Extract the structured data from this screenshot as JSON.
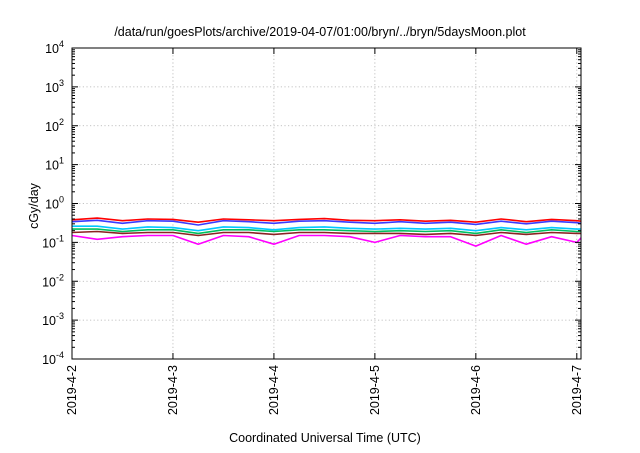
{
  "chart_data": {
    "type": "line",
    "title": "/data/run/goesPlots/archive/2019-04-07/01:00/bryn/../bryn/5daysMoon.plot",
    "xlabel": "Coordinated Universal Time (UTC)",
    "ylabel": "cGy/day",
    "y_scale": "log",
    "ylim": [
      0.0001,
      10000
    ],
    "y_ticks": [
      {
        "value": 10000,
        "base": "10",
        "exp": "4"
      },
      {
        "value": 1000,
        "base": "10",
        "exp": "3"
      },
      {
        "value": 100,
        "base": "10",
        "exp": "2"
      },
      {
        "value": 10,
        "base": "10",
        "exp": "1"
      },
      {
        "value": 1,
        "base": "10",
        "exp": "0"
      },
      {
        "value": 0.1,
        "base": "10",
        "exp": "-1"
      },
      {
        "value": 0.01,
        "base": "10",
        "exp": "-2"
      },
      {
        "value": 0.001,
        "base": "10",
        "exp": "-3"
      },
      {
        "value": 0.0001,
        "base": "10",
        "exp": "-4"
      }
    ],
    "xlim": [
      "2019-04-02",
      "2019-04-07 01:00"
    ],
    "x_ticks": [
      {
        "value": "2019-04-02",
        "label": "2019-4-2"
      },
      {
        "value": "2019-04-03",
        "label": "2019-4-3"
      },
      {
        "value": "2019-04-04",
        "label": "2019-4-4"
      },
      {
        "value": "2019-04-05",
        "label": "2019-4-5"
      },
      {
        "value": "2019-04-06",
        "label": "2019-4-6"
      },
      {
        "value": "2019-04-07",
        "label": "2019-4-7"
      }
    ],
    "grid": true,
    "legend": "none",
    "x": [
      "2019-04-02 00:00",
      "2019-04-02 06:00",
      "2019-04-02 12:00",
      "2019-04-02 18:00",
      "2019-04-03 00:00",
      "2019-04-03 06:00",
      "2019-04-03 12:00",
      "2019-04-03 18:00",
      "2019-04-04 00:00",
      "2019-04-04 06:00",
      "2019-04-04 12:00",
      "2019-04-04 18:00",
      "2019-04-05 00:00",
      "2019-04-05 06:00",
      "2019-04-05 12:00",
      "2019-04-05 18:00",
      "2019-04-06 00:00",
      "2019-04-06 06:00",
      "2019-04-06 12:00",
      "2019-04-06 18:00",
      "2019-04-07 00:00",
      "2019-04-07 01:00"
    ],
    "series": [
      {
        "color": "#ff0000",
        "values": [
          0.38,
          0.42,
          0.36,
          0.4,
          0.39,
          0.33,
          0.4,
          0.38,
          0.36,
          0.39,
          0.41,
          0.37,
          0.36,
          0.38,
          0.35,
          0.37,
          0.33,
          0.4,
          0.34,
          0.39,
          0.36,
          0.35
        ]
      },
      {
        "color": "#3a3aff",
        "values": [
          0.34,
          0.37,
          0.31,
          0.36,
          0.35,
          0.28,
          0.36,
          0.34,
          0.31,
          0.35,
          0.36,
          0.33,
          0.31,
          0.34,
          0.31,
          0.33,
          0.29,
          0.35,
          0.3,
          0.35,
          0.32,
          0.31
        ]
      },
      {
        "color": "#00c8ff",
        "values": [
          0.26,
          0.26,
          0.22,
          0.25,
          0.24,
          0.2,
          0.25,
          0.24,
          0.21,
          0.24,
          0.25,
          0.23,
          0.22,
          0.23,
          0.22,
          0.23,
          0.2,
          0.24,
          0.21,
          0.24,
          0.22,
          0.22
        ]
      },
      {
        "color": "#00c060",
        "values": [
          0.22,
          0.22,
          0.19,
          0.21,
          0.21,
          0.17,
          0.21,
          0.21,
          0.19,
          0.21,
          0.21,
          0.2,
          0.19,
          0.2,
          0.19,
          0.2,
          0.17,
          0.21,
          0.18,
          0.21,
          0.19,
          0.19
        ]
      },
      {
        "color": "#8b2222",
        "values": [
          0.18,
          0.19,
          0.17,
          0.18,
          0.18,
          0.15,
          0.18,
          0.18,
          0.16,
          0.18,
          0.18,
          0.17,
          0.17,
          0.17,
          0.16,
          0.17,
          0.15,
          0.18,
          0.16,
          0.18,
          0.17,
          0.17
        ]
      },
      {
        "color": "#ff00ff",
        "values": [
          0.15,
          0.12,
          0.14,
          0.15,
          0.15,
          0.09,
          0.15,
          0.14,
          0.09,
          0.15,
          0.15,
          0.14,
          0.1,
          0.15,
          0.14,
          0.14,
          0.08,
          0.15,
          0.09,
          0.14,
          0.1,
          0.13
        ]
      }
    ]
  }
}
